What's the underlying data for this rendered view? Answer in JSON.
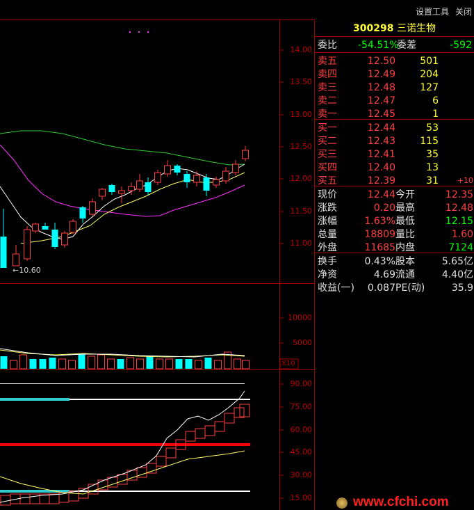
{
  "toolbar": {
    "settings_tools": "设置工具",
    "close": "关闭"
  },
  "price_axis": [
    "14.00",
    "13.50",
    "13.00",
    "12.50",
    "12.00",
    "11.50",
    "11.00"
  ],
  "low_marker": "←10.60",
  "volume_axis": [
    "10000",
    "5000"
  ],
  "volume_unit": "X10",
  "osc_axis": [
    "90.00",
    "75.00",
    "60.00",
    "45.00",
    "30.00",
    "15.00"
  ],
  "stock": {
    "code": "300298",
    "name": "三诺生物"
  },
  "ratio": {
    "label": "委比",
    "value": "-54.51%",
    "diff_label": "委差",
    "diff_value": "-592"
  },
  "asks": [
    {
      "label": "卖五",
      "price": "12.50",
      "vol": "501",
      "change": ""
    },
    {
      "label": "卖四",
      "price": "12.49",
      "vol": "204",
      "change": ""
    },
    {
      "label": "卖三",
      "price": "12.48",
      "vol": "127",
      "change": ""
    },
    {
      "label": "卖二",
      "price": "12.47",
      "vol": "6",
      "change": ""
    },
    {
      "label": "卖一",
      "price": "12.45",
      "vol": "1",
      "change": ""
    }
  ],
  "bids": [
    {
      "label": "买一",
      "price": "12.44",
      "vol": "53",
      "change": ""
    },
    {
      "label": "买二",
      "price": "12.43",
      "vol": "115",
      "change": ""
    },
    {
      "label": "买三",
      "price": "12.41",
      "vol": "35",
      "change": ""
    },
    {
      "label": "买四",
      "price": "12.40",
      "vol": "13",
      "change": ""
    },
    {
      "label": "买五",
      "price": "12.39",
      "vol": "31",
      "change": "+10"
    }
  ],
  "stats": [
    {
      "l1": "现价",
      "v1": "12.44",
      "l2": "今开",
      "v2": "12.35"
    },
    {
      "l1": "涨跌",
      "v1": "0.20",
      "l2": "最高",
      "v2": "12.48"
    },
    {
      "l1": "涨幅",
      "v1": "1.63%",
      "l2": "最低",
      "v2": "12.15"
    },
    {
      "l1": "总量",
      "v1": "18809",
      "l2": "量比",
      "v2": "1.60"
    },
    {
      "l1": "外盘",
      "v1": "11685",
      "l2": "内盘",
      "v2": "7124"
    }
  ],
  "info": [
    {
      "l1": "换手",
      "v1": "0.43%",
      "l2": "股本",
      "v2": "5.65亿"
    },
    {
      "l1": "净资",
      "v1": "4.69",
      "l2": "流通",
      "v2": "4.40亿"
    },
    {
      "l1": "收益(一)",
      "v1": "0.087",
      "l2": "PE(动)",
      "v2": "35.9"
    }
  ],
  "watermark": "www.cfchi.com",
  "colors": {
    "up": "#ff4040",
    "down": "#00ffff",
    "ma_white": "#ffffff",
    "ma_yellow": "#ffff66",
    "ma_magenta": "#ff33ff",
    "ma_green": "#33cc33",
    "grid": "#a00000"
  }
}
